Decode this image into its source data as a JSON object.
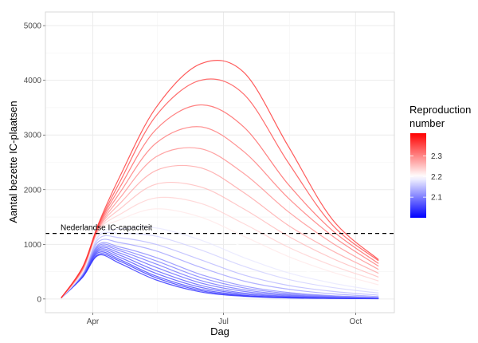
{
  "chart_data": {
    "type": "line",
    "title": "",
    "xlabel": "Dag",
    "ylabel": "Aantal bezette IC-plaatsen",
    "x_tick_labels": [
      "Apr",
      "Jul",
      "Oct"
    ],
    "x_tick_dates": [
      "2020-04-01",
      "2020-07-01",
      "2020-10-01"
    ],
    "y_ticks": [
      0,
      1000,
      2000,
      3000,
      4000,
      5000
    ],
    "ylim": [
      -250,
      5250
    ],
    "xlim": [
      "2020-02-28",
      "2020-10-28"
    ],
    "grid": true,
    "x": [
      "2020-03-10",
      "2020-03-25",
      "2020-04-05",
      "2020-04-20",
      "2020-05-15",
      "2020-06-15",
      "2020-07-15",
      "2020-08-15",
      "2020-09-15",
      "2020-10-17"
    ],
    "series": [
      {
        "r": 2.02,
        "values": [
          20,
          400,
          800,
          650,
          350,
          130,
          50,
          20,
          10,
          5
        ]
      },
      {
        "r": 2.03,
        "values": [
          20,
          410,
          820,
          690,
          390,
          155,
          60,
          25,
          12,
          6
        ]
      },
      {
        "r": 2.04,
        "values": [
          20,
          420,
          850,
          720,
          420,
          180,
          70,
          30,
          15,
          8
        ]
      },
      {
        "r": 2.05,
        "values": [
          20,
          425,
          875,
          760,
          470,
          215,
          90,
          40,
          20,
          10
        ]
      },
      {
        "r": 2.06,
        "values": [
          20,
          430,
          900,
          800,
          520,
          250,
          110,
          50,
          25,
          12
        ]
      },
      {
        "r": 2.07,
        "values": [
          20,
          435,
          925,
          840,
          580,
          295,
          140,
          65,
          32,
          16
        ]
      },
      {
        "r": 2.08,
        "values": [
          20,
          440,
          950,
          880,
          640,
          340,
          170,
          80,
          40,
          20
        ]
      },
      {
        "r": 2.09,
        "values": [
          20,
          445,
          975,
          915,
          700,
          395,
          205,
          100,
          50,
          25
        ]
      },
      {
        "r": 2.1,
        "values": [
          20,
          450,
          1000,
          950,
          760,
          450,
          240,
          120,
          60,
          30
        ]
      },
      {
        "r": 2.12,
        "values": [
          20,
          460,
          1050,
          1030,
          880,
          580,
          330,
          180,
          95,
          45
        ]
      },
      {
        "r": 2.14,
        "values": [
          20,
          470,
          1100,
          1120,
          1000,
          720,
          440,
          250,
          140,
          70
        ]
      },
      {
        "r": 2.16,
        "values": [
          20,
          480,
          1150,
          1200,
          1150,
          900,
          600,
          360,
          210,
          110
        ]
      },
      {
        "r": 2.18,
        "values": [
          20,
          490,
          1180,
          1280,
          1300,
          1080,
          760,
          480,
          290,
          150
        ]
      },
      {
        "r": 2.2,
        "values": [
          20,
          500,
          1200,
          1360,
          1450,
          1280,
          950,
          620,
          380,
          200
        ]
      },
      {
        "r": 2.22,
        "values": [
          20,
          510,
          1230,
          1450,
          1650,
          1500,
          1150,
          780,
          490,
          260
        ]
      },
      {
        "r": 2.24,
        "values": [
          20,
          520,
          1250,
          1550,
          1850,
          1750,
          1380,
          950,
          610,
          330
        ]
      },
      {
        "r": 2.26,
        "values": [
          20,
          530,
          1270,
          1650,
          2100,
          2050,
          1650,
          1150,
          740,
          400
        ]
      },
      {
        "r": 2.28,
        "values": [
          20,
          540,
          1290,
          1750,
          2350,
          2400,
          1950,
          1350,
          880,
          470
        ]
      },
      {
        "r": 2.3,
        "values": [
          20,
          550,
          1300,
          1850,
          2600,
          2750,
          2300,
          1600,
          1020,
          540
        ]
      },
      {
        "r": 2.32,
        "values": [
          20,
          560,
          1320,
          1950,
          2850,
          3150,
          2700,
          1850,
          1150,
          600
        ]
      },
      {
        "r": 2.34,
        "values": [
          20,
          570,
          1340,
          2050,
          3100,
          3550,
          3150,
          2100,
          1250,
          650
        ]
      },
      {
        "r": 2.36,
        "values": [
          20,
          580,
          1360,
          2150,
          3350,
          4000,
          3750,
          2500,
          1350,
          700
        ]
      },
      {
        "r": 2.38,
        "values": [
          20,
          590,
          1380,
          2250,
          3500,
          4300,
          4150,
          2800,
          1450,
          720
        ]
      }
    ],
    "reference_line": {
      "y": 1200,
      "label": "Nederlandse IC-capaciteit",
      "style": "dashed"
    },
    "color_scale": {
      "title_line1": "Reproduction",
      "title_line2": "number",
      "low": "#0000FF",
      "mid": "#FFFFFF",
      "high": "#FF0000",
      "midpoint": 2.2,
      "limits": [
        2.0,
        2.41
      ],
      "ticks": [
        "2.1",
        "2.2",
        "2.3"
      ]
    },
    "legend_position": "right"
  }
}
